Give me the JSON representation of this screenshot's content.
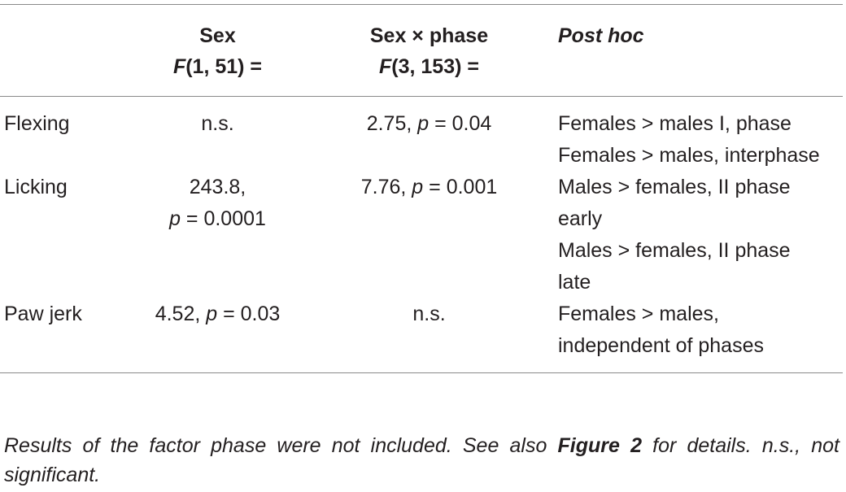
{
  "table": {
    "header": [
      {
        "lines": [
          [
            {
              "text": ""
            }
          ]
        ]
      },
      {
        "lines": [
          [
            {
              "text": "Sex"
            }
          ],
          [
            {
              "text": "F",
              "italic": true
            },
            {
              "text": "(1, 51) ="
            }
          ]
        ]
      },
      {
        "lines": [
          [
            {
              "text": "Sex × phase"
            }
          ],
          [
            {
              "text": "F",
              "italic": true
            },
            {
              "text": "(3, 153) ="
            }
          ]
        ]
      },
      {
        "lines": [
          [
            {
              "text": "Post hoc",
              "italic": true
            }
          ]
        ]
      }
    ],
    "rows": [
      {
        "label": "Flexing",
        "sex": {
          "lines": [
            [
              {
                "text": "n.s."
              }
            ]
          ]
        },
        "interaction": {
          "lines": [
            [
              {
                "text": "2.75, "
              },
              {
                "text": "p",
                "italic": true
              },
              {
                "text": " = 0.04"
              }
            ]
          ]
        },
        "post_hoc": [
          "Females > males I, phase",
          "Females > males, interphase"
        ]
      },
      {
        "label": "Licking",
        "sex": {
          "lines": [
            [
              {
                "text": "243.8,"
              }
            ],
            [
              {
                "text": "p",
                "italic": true
              },
              {
                "text": " = 0.0001"
              }
            ]
          ]
        },
        "interaction": {
          "lines": [
            [
              {
                "text": "7.76, "
              },
              {
                "text": "p",
                "italic": true
              },
              {
                "text": " = 0.001"
              }
            ]
          ]
        },
        "post_hoc": [
          "Males > females, II phase early",
          "Males > females, II phase late"
        ]
      },
      {
        "label": "Paw jerk",
        "sex": {
          "lines": [
            [
              {
                "text": "4.52, "
              },
              {
                "text": "p",
                "italic": true
              },
              {
                "text": " = 0.03"
              }
            ]
          ]
        },
        "interaction": {
          "lines": [
            [
              {
                "text": "n.s."
              }
            ]
          ]
        },
        "post_hoc": [
          "Females > males, independent of phases"
        ]
      }
    ],
    "caption": [
      {
        "text": "Results of the factor phase were not included. See also "
      },
      {
        "text": "Figure 2",
        "bold": true
      },
      {
        "text": " for details. n.s., not significant."
      }
    ]
  }
}
